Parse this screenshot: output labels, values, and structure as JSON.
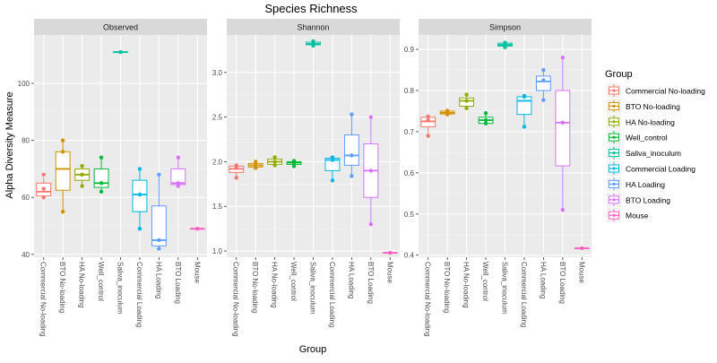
{
  "chart_data": {
    "type": "box",
    "title": "Species Richness",
    "xlabel": "Group",
    "ylabel": "Alpha Diversity Measure",
    "legend": {
      "title": "Group",
      "position": "right",
      "entries": [
        "Commercial No-loading",
        "BTO No-loading",
        "HA No-loading",
        "Well_control",
        "Saliva_inoculum",
        "Commercial Loading",
        "HA Loading",
        "BTO Loading",
        "Mouse"
      ]
    },
    "categories": [
      "Commercial No-loading",
      "BTO No-loading",
      "HA No-loading",
      "Well_control",
      "Saliva_inoculum",
      "Commercial Loading",
      "HA Loading",
      "BTO Loading",
      "Mouse"
    ],
    "colors": [
      "#F8766D",
      "#D39200",
      "#93AA00",
      "#00BA38",
      "#00C19F",
      "#00B9E3",
      "#619CFF",
      "#DB72FB",
      "#FF61C3"
    ],
    "panels": [
      {
        "name": "Observed",
        "ylim": [
          39,
          117
        ],
        "yticks": [
          40,
          60,
          80,
          100
        ],
        "tick_labels": [
          "40",
          "60",
          "80",
          "100"
        ],
        "boxes": [
          {
            "q1": 60.5,
            "median": 62,
            "q3": 65,
            "wmin": 60,
            "wmax": 67,
            "points": [
              60,
              63,
              68
            ]
          },
          {
            "q1": 62.5,
            "median": 70,
            "q3": 76,
            "wmin": 55,
            "wmax": 80,
            "points": [
              55,
              76,
              80
            ]
          },
          {
            "q1": 66,
            "median": 68,
            "q3": 70,
            "wmin": 64,
            "wmax": 71,
            "points": [
              64,
              68,
              71
            ]
          },
          {
            "q1": 63.5,
            "median": 65,
            "q3": 70,
            "wmin": 62,
            "wmax": 74,
            "points": [
              62,
              65,
              74
            ]
          },
          {
            "q1": 111,
            "median": 111,
            "q3": 111,
            "wmin": 111,
            "wmax": 111,
            "points": [
              111
            ]
          },
          {
            "q1": 55,
            "median": 61,
            "q3": 66,
            "wmin": 49,
            "wmax": 70,
            "points": [
              49,
              61,
              70
            ]
          },
          {
            "q1": 43,
            "median": 45,
            "q3": 57,
            "wmin": 42,
            "wmax": 68,
            "points": [
              42,
              45,
              68
            ]
          },
          {
            "q1": 64.5,
            "median": 65,
            "q3": 70,
            "wmin": 64,
            "wmax": 74,
            "points": [
              64,
              65,
              74
            ]
          },
          {
            "q1": 49,
            "median": 49,
            "q3": 49,
            "wmin": 49,
            "wmax": 49,
            "points": [
              49
            ]
          }
        ]
      },
      {
        "name": "Shannon",
        "ylim": [
          0.93,
          3.42
        ],
        "yticks": [
          1.0,
          1.5,
          2.0,
          2.5,
          3.0
        ],
        "tick_labels": [
          "1.0",
          "1.5",
          "2.0",
          "2.5",
          "3.0"
        ],
        "boxes": [
          {
            "q1": 1.88,
            "median": 1.92,
            "q3": 1.95,
            "wmin": 1.82,
            "wmax": 1.96,
            "points": [
              1.82,
              1.93,
              1.96
            ]
          },
          {
            "q1": 1.94,
            "median": 1.96,
            "q3": 1.98,
            "wmin": 1.93,
            "wmax": 2.0,
            "points": [
              1.93,
              1.96,
              2.0
            ]
          },
          {
            "q1": 1.97,
            "median": 2.0,
            "q3": 2.03,
            "wmin": 1.96,
            "wmax": 2.05,
            "points": [
              1.96,
              2.0,
              2.05
            ]
          },
          {
            "q1": 1.97,
            "median": 1.99,
            "q3": 2.0,
            "wmin": 1.95,
            "wmax": 2.01,
            "points": [
              1.95,
              1.99,
              2.01
            ]
          },
          {
            "q1": 3.31,
            "median": 3.32,
            "q3": 3.34,
            "wmin": 3.3,
            "wmax": 3.35,
            "points": [
              3.3,
              3.32,
              3.35
            ]
          },
          {
            "q1": 1.9,
            "median": 2.02,
            "q3": 2.04,
            "wmin": 1.79,
            "wmax": 2.05,
            "points": [
              1.79,
              2.02,
              2.05
            ]
          },
          {
            "q1": 1.96,
            "median": 2.07,
            "q3": 2.3,
            "wmin": 1.84,
            "wmax": 2.53,
            "points": [
              1.84,
              2.07,
              2.53
            ]
          },
          {
            "q1": 1.6,
            "median": 1.9,
            "q3": 2.2,
            "wmin": 1.3,
            "wmax": 2.5,
            "points": [
              1.3,
              1.9,
              2.5
            ]
          },
          {
            "q1": 0.98,
            "median": 0.98,
            "q3": 0.98,
            "wmin": 0.98,
            "wmax": 0.98,
            "points": [
              0.98
            ]
          }
        ]
      },
      {
        "name": "Simpson",
        "ylim": [
          0.395,
          0.935
        ],
        "yticks": [
          0.4,
          0.5,
          0.6,
          0.7,
          0.8,
          0.9
        ],
        "tick_labels": [
          "0.4",
          "0.5",
          "0.6",
          "0.7",
          "0.8",
          "0.9"
        ],
        "boxes": [
          {
            "q1": 0.712,
            "median": 0.725,
            "q3": 0.735,
            "wmin": 0.69,
            "wmax": 0.737,
            "points": [
              0.69,
              0.728,
              0.737
            ]
          },
          {
            "q1": 0.743,
            "median": 0.746,
            "q3": 0.75,
            "wmin": 0.742,
            "wmax": 0.751,
            "points": [
              0.742,
              0.747,
              0.751
            ]
          },
          {
            "q1": 0.762,
            "median": 0.775,
            "q3": 0.782,
            "wmin": 0.757,
            "wmax": 0.79,
            "points": [
              0.757,
              0.775,
              0.79
            ]
          },
          {
            "q1": 0.72,
            "median": 0.728,
            "q3": 0.735,
            "wmin": 0.72,
            "wmax": 0.745,
            "points": [
              0.72,
              0.728,
              0.745
            ]
          },
          {
            "q1": 0.908,
            "median": 0.911,
            "q3": 0.915,
            "wmin": 0.905,
            "wmax": 0.916,
            "points": [
              0.905,
              0.911,
              0.916
            ]
          },
          {
            "q1": 0.742,
            "median": 0.775,
            "q3": 0.785,
            "wmin": 0.712,
            "wmax": 0.787,
            "points": [
              0.712,
              0.785,
              0.787
            ]
          },
          {
            "q1": 0.8,
            "median": 0.822,
            "q3": 0.835,
            "wmin": 0.777,
            "wmax": 0.85,
            "points": [
              0.777,
              0.825,
              0.85
            ]
          },
          {
            "q1": 0.617,
            "median": 0.722,
            "q3": 0.8,
            "wmin": 0.51,
            "wmax": 0.88,
            "points": [
              0.51,
              0.722,
              0.88
            ]
          },
          {
            "q1": 0.417,
            "median": 0.417,
            "q3": 0.417,
            "wmin": 0.417,
            "wmax": 0.417,
            "points": [
              0.417
            ]
          }
        ]
      }
    ]
  }
}
